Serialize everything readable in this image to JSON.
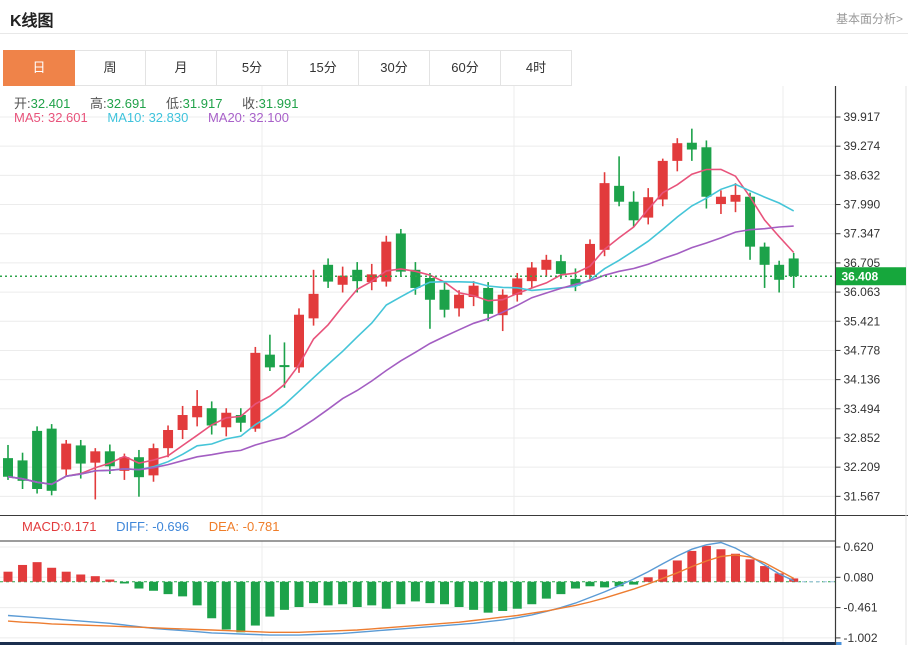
{
  "header": {
    "title": "K线图",
    "analysis_link": "基本面分析>"
  },
  "tabs": {
    "items": [
      "日",
      "周",
      "月",
      "5分",
      "15分",
      "30分",
      "60分",
      "4时"
    ],
    "selected_index": 0
  },
  "main_legend": {
    "ohlc": [
      {
        "label": "开:",
        "value": "32.401"
      },
      {
        "label": "高:",
        "value": "32.691"
      },
      {
        "label": "低:",
        "value": "31.917"
      },
      {
        "label": "收:",
        "value": "31.991"
      }
    ],
    "ma": [
      {
        "label": "MA5:",
        "value": "32.601",
        "color": "#e8537b"
      },
      {
        "label": "MA10:",
        "value": "32.830",
        "color": "#3fc3dc"
      },
      {
        "label": "MA20:",
        "value": "32.100",
        "color": "#a861c9"
      }
    ]
  },
  "macd_legend": [
    {
      "label": "MACD:",
      "value": "0.171",
      "color": "#e23b3c"
    },
    {
      "label": "DIFF:",
      "value": "-0.696",
      "color": "#3f87d9"
    },
    {
      "label": "DEA:",
      "value": "-0.781",
      "color": "#ef7d29"
    }
  ],
  "colors": {
    "up_candle": "#e23b3c",
    "down_candle": "#1ca24a",
    "tab_active": "#ef8349",
    "price_tag": "#16a73c",
    "dotted_price_line": "#2ea54c",
    "diff_line": "#5b9bd5",
    "dea_line": "#ed7d31",
    "ma5": "#e8537b",
    "ma10": "#45c5d8",
    "ma20": "#a35ec2",
    "grid": "#ececec",
    "axis": "#3a3a3a",
    "scrollbar": "#1b2f4e"
  },
  "chart_data": {
    "type": "candlestick+macd",
    "note": "red candle = up (close>=open), green candle = down; values in OHLC order",
    "main_pane": {
      "y_ticks": [
        "39.917",
        "39.274",
        "38.632",
        "37.990",
        "37.347",
        "36.705",
        "36.063",
        "35.421",
        "34.778",
        "34.136",
        "33.494",
        "32.852",
        "32.209",
        "31.567"
      ],
      "current_price": "36.408",
      "ma_periods": [
        5,
        10,
        20
      ],
      "candles_ohlc": [
        [
          32.4,
          32.69,
          31.92,
          31.99
        ],
        [
          32.35,
          32.52,
          31.72,
          31.9
        ],
        [
          33.0,
          33.1,
          31.62,
          31.72
        ],
        [
          33.05,
          33.15,
          31.58,
          31.68
        ],
        [
          32.15,
          32.8,
          32.0,
          32.72
        ],
        [
          32.68,
          32.8,
          31.95,
          32.28
        ],
        [
          32.3,
          32.62,
          31.49,
          32.55
        ],
        [
          32.55,
          32.7,
          32.05,
          32.22
        ],
        [
          32.12,
          32.5,
          31.92,
          32.42
        ],
        [
          32.42,
          32.58,
          31.55,
          31.98
        ],
        [
          32.02,
          32.72,
          31.88,
          32.62
        ],
        [
          32.62,
          33.12,
          32.42,
          33.02
        ],
        [
          33.02,
          33.55,
          32.82,
          33.35
        ],
        [
          33.3,
          33.9,
          33.1,
          33.55
        ],
        [
          33.5,
          33.65,
          32.92,
          33.12
        ],
        [
          33.08,
          33.5,
          32.88,
          33.4
        ],
        [
          33.35,
          33.5,
          32.98,
          33.18
        ],
        [
          33.05,
          34.85,
          32.98,
          34.72
        ],
        [
          34.68,
          35.12,
          34.32,
          34.4
        ],
        [
          34.45,
          34.95,
          33.95,
          34.42
        ],
        [
          34.4,
          35.7,
          34.28,
          35.56
        ],
        [
          35.48,
          36.55,
          35.32,
          36.02
        ],
        [
          36.66,
          36.8,
          36.15,
          36.29
        ],
        [
          36.22,
          36.62,
          36.05,
          36.42
        ],
        [
          36.55,
          36.72,
          36.05,
          36.3
        ],
        [
          36.28,
          36.68,
          36.1,
          36.45
        ],
        [
          36.29,
          37.3,
          36.18,
          37.17
        ],
        [
          37.35,
          37.45,
          36.4,
          36.51
        ],
        [
          36.55,
          36.72,
          36.0,
          36.15
        ],
        [
          36.37,
          36.48,
          35.25,
          35.89
        ],
        [
          36.11,
          36.3,
          35.5,
          35.67
        ],
        [
          35.7,
          36.1,
          35.52,
          36.0
        ],
        [
          35.95,
          36.3,
          35.75,
          36.2
        ],
        [
          36.15,
          36.28,
          35.42,
          35.58
        ],
        [
          35.55,
          36.12,
          35.2,
          36.0
        ],
        [
          36.0,
          36.48,
          35.85,
          36.36
        ],
        [
          36.3,
          36.72,
          36.15,
          36.6
        ],
        [
          36.55,
          36.88,
          36.4,
          36.77
        ],
        [
          36.74,
          36.88,
          36.35,
          36.46
        ],
        [
          36.35,
          36.58,
          36.08,
          36.2
        ],
        [
          36.44,
          37.22,
          36.3,
          37.12
        ],
        [
          36.99,
          38.7,
          36.85,
          38.46
        ],
        [
          38.4,
          39.05,
          37.95,
          38.05
        ],
        [
          38.05,
          38.28,
          37.5,
          37.64
        ],
        [
          37.7,
          38.35,
          37.55,
          38.15
        ],
        [
          38.1,
          39.0,
          37.95,
          38.95
        ],
        [
          38.95,
          39.45,
          38.72,
          39.34
        ],
        [
          39.35,
          39.66,
          38.95,
          39.2
        ],
        [
          39.25,
          39.4,
          37.9,
          38.16
        ],
        [
          38.0,
          38.3,
          37.78,
          38.16
        ],
        [
          38.05,
          38.46,
          37.82,
          38.2
        ],
        [
          38.16,
          38.25,
          36.77,
          37.06
        ],
        [
          37.06,
          37.15,
          36.15,
          36.66
        ],
        [
          36.66,
          36.75,
          36.05,
          36.33
        ],
        [
          36.8,
          36.92,
          36.15,
          36.41
        ]
      ]
    },
    "macd_pane": {
      "y_ticks": [
        "0.620",
        "0.080",
        "-0.461",
        "-1.002"
      ],
      "macd_histogram": [
        0.18,
        0.3,
        0.35,
        0.25,
        0.18,
        0.13,
        0.1,
        0.04,
        -0.03,
        -0.12,
        -0.16,
        -0.22,
        -0.26,
        -0.42,
        -0.65,
        -0.85,
        -0.9,
        -0.78,
        -0.62,
        -0.5,
        -0.45,
        -0.38,
        -0.42,
        -0.4,
        -0.45,
        -0.42,
        -0.48,
        -0.4,
        -0.35,
        -0.38,
        -0.4,
        -0.45,
        -0.5,
        -0.55,
        -0.52,
        -0.48,
        -0.4,
        -0.3,
        -0.22,
        -0.12,
        -0.08,
        -0.1,
        -0.08,
        -0.05,
        0.08,
        0.22,
        0.38,
        0.55,
        0.64,
        0.58,
        0.5,
        0.4,
        0.28,
        0.15,
        0.06
      ],
      "diff_line": [
        -0.6,
        -0.62,
        -0.64,
        -0.66,
        -0.68,
        -0.7,
        -0.72,
        -0.74,
        -0.77,
        -0.8,
        -0.83,
        -0.85,
        -0.87,
        -0.89,
        -0.91,
        -0.92,
        -0.93,
        -0.94,
        -0.95,
        -0.95,
        -0.95,
        -0.94,
        -0.93,
        -0.92,
        -0.9,
        -0.88,
        -0.86,
        -0.84,
        -0.82,
        -0.8,
        -0.78,
        -0.76,
        -0.74,
        -0.71,
        -0.68,
        -0.64,
        -0.59,
        -0.53,
        -0.46,
        -0.38,
        -0.28,
        -0.18,
        -0.07,
        0.05,
        0.18,
        0.32,
        0.46,
        0.58,
        0.66,
        0.7,
        0.6,
        0.46,
        0.3,
        0.14,
        0.02
      ],
      "dea_line": [
        -0.7,
        -0.72,
        -0.73,
        -0.75,
        -0.76,
        -0.77,
        -0.78,
        -0.79,
        -0.8,
        -0.81,
        -0.82,
        -0.83,
        -0.84,
        -0.85,
        -0.86,
        -0.87,
        -0.88,
        -0.89,
        -0.9,
        -0.9,
        -0.9,
        -0.89,
        -0.88,
        -0.87,
        -0.86,
        -0.84,
        -0.82,
        -0.8,
        -0.78,
        -0.76,
        -0.74,
        -0.72,
        -0.69,
        -0.66,
        -0.63,
        -0.6,
        -0.56,
        -0.52,
        -0.47,
        -0.42,
        -0.36,
        -0.29,
        -0.21,
        -0.13,
        -0.04,
        0.06,
        0.16,
        0.27,
        0.37,
        0.45,
        0.48,
        0.44,
        0.34,
        0.2,
        0.06
      ]
    }
  }
}
